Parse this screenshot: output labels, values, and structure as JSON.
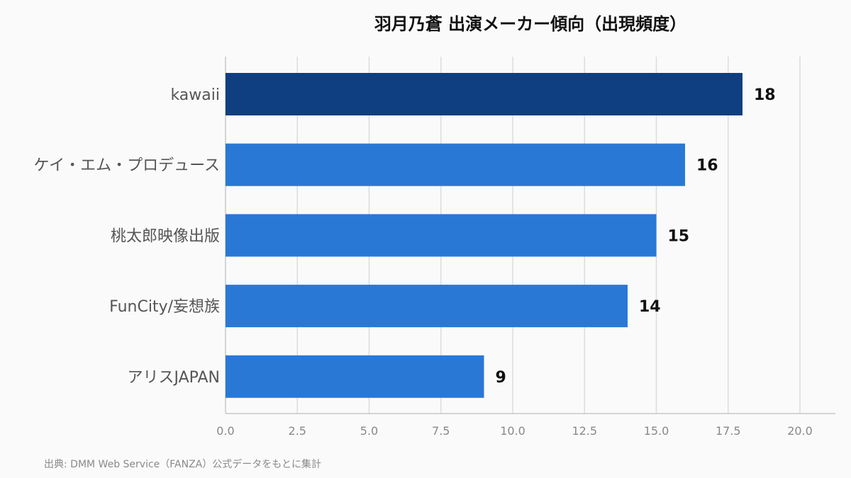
{
  "chart_data": {
    "type": "bar",
    "orientation": "horizontal",
    "title": "羽月乃蒼 出演メーカー傾向（出現頻度）",
    "categories": [
      "kawaii",
      "ケイ・エム・プロデュース",
      "桃太郎映像出版",
      "FunCity/妄想族",
      "アリスJAPAN"
    ],
    "values": [
      18,
      16,
      15,
      14,
      9
    ],
    "xlim": [
      0,
      21.25
    ],
    "x_ticks": [
      "0.0",
      "2.5",
      "5.0",
      "7.5",
      "10.0",
      "12.5",
      "15.0",
      "17.5",
      "20.0"
    ],
    "grid": true,
    "colors": {
      "highlight": "#0f3f80",
      "bar": "#2a78d6"
    },
    "highlight_index": 0
  },
  "source": "出典: DMM Web Service（FANZA）公式データをもとに集計"
}
